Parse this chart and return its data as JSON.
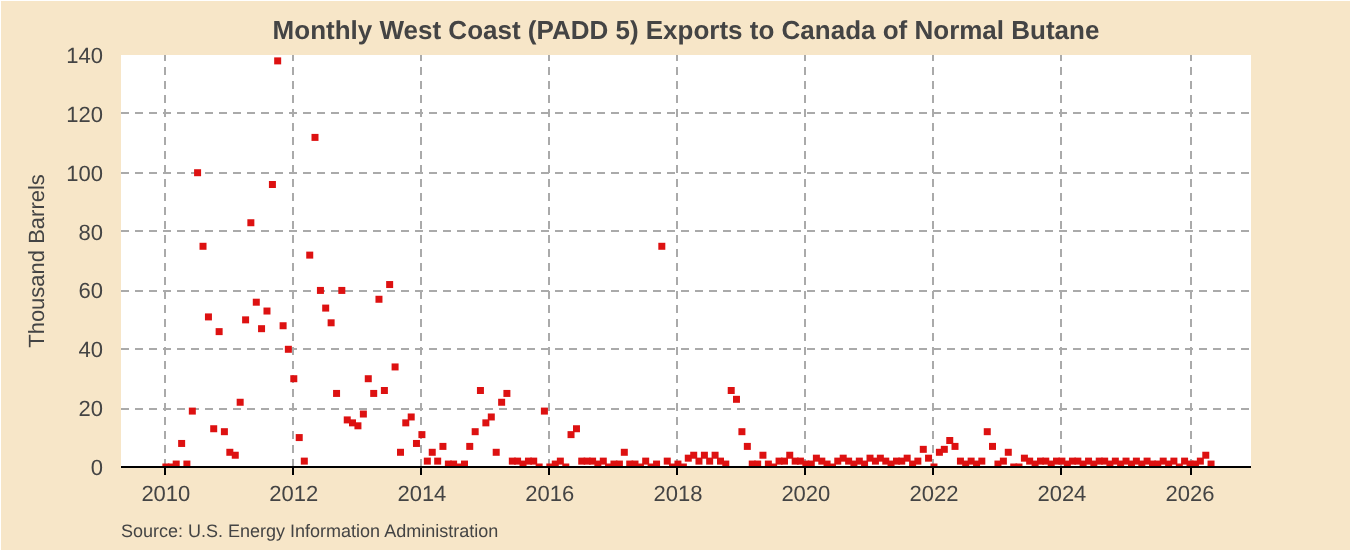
{
  "chart_data": {
    "type": "scatter",
    "title": "Monthly West Coast (PADD 5) Exports to Canada of Normal Butane",
    "ylabel": "Thousand Barrels",
    "annotations": [
      "Source: U.S. Energy Information Administration"
    ],
    "x": [
      "2010-01",
      "2010-02",
      "2010-03",
      "2010-04",
      "2010-05",
      "2010-06",
      "2010-07",
      "2010-08",
      "2010-09",
      "2010-10",
      "2010-11",
      "2010-12",
      "2011-01",
      "2011-02",
      "2011-03",
      "2011-04",
      "2011-05",
      "2011-06",
      "2011-07",
      "2011-08",
      "2011-09",
      "2011-10",
      "2011-11",
      "2011-12",
      "2012-01",
      "2012-02",
      "2012-03",
      "2012-04",
      "2012-05",
      "2012-06",
      "2012-07",
      "2012-08",
      "2012-09",
      "2012-10",
      "2012-11",
      "2012-12",
      "2013-01",
      "2013-02",
      "2013-03",
      "2013-04",
      "2013-05",
      "2013-06",
      "2013-07",
      "2013-08",
      "2013-09",
      "2013-10",
      "2013-11",
      "2013-12",
      "2014-01",
      "2014-02",
      "2014-03",
      "2014-04",
      "2014-05",
      "2014-06",
      "2014-07",
      "2014-08",
      "2014-09",
      "2014-10",
      "2014-11",
      "2014-12",
      "2015-01",
      "2015-02",
      "2015-03",
      "2015-04",
      "2015-05",
      "2015-06",
      "2015-07",
      "2015-08",
      "2015-09",
      "2015-10",
      "2015-11",
      "2015-12",
      "2016-01",
      "2016-02",
      "2016-03",
      "2016-04",
      "2016-05",
      "2016-06",
      "2016-07",
      "2016-08",
      "2016-09",
      "2016-10",
      "2016-11",
      "2016-12",
      "2017-01",
      "2017-02",
      "2017-03",
      "2017-04",
      "2017-05",
      "2017-06",
      "2017-07",
      "2017-08",
      "2017-09",
      "2017-10",
      "2017-11",
      "2017-12",
      "2018-01",
      "2018-02",
      "2018-03",
      "2018-04",
      "2018-05",
      "2018-06",
      "2018-07",
      "2018-08",
      "2018-09",
      "2018-10",
      "2018-11",
      "2018-12",
      "2019-01",
      "2019-02",
      "2019-03",
      "2019-04",
      "2019-05",
      "2019-06",
      "2019-07",
      "2019-08",
      "2019-09",
      "2019-10",
      "2019-11",
      "2019-12",
      "2020-01",
      "2020-02",
      "2020-03",
      "2020-04",
      "2020-05",
      "2020-06",
      "2020-07",
      "2020-08",
      "2020-09",
      "2020-10",
      "2020-11",
      "2020-12",
      "2021-01",
      "2021-02",
      "2021-03",
      "2021-04",
      "2021-05",
      "2021-06",
      "2021-07",
      "2021-08",
      "2021-09",
      "2021-10",
      "2021-11",
      "2021-12",
      "2022-01",
      "2022-02",
      "2022-03",
      "2022-04",
      "2022-05",
      "2022-06",
      "2022-07",
      "2022-08",
      "2022-09",
      "2022-10",
      "2022-11",
      "2022-12",
      "2023-01",
      "2023-02",
      "2023-03",
      "2023-04",
      "2023-05",
      "2023-06",
      "2023-07",
      "2023-08",
      "2023-09",
      "2023-10",
      "2023-11",
      "2023-12",
      "2024-01",
      "2024-02",
      "2024-03",
      "2024-04",
      "2024-05",
      "2024-06",
      "2024-07",
      "2024-08",
      "2024-09",
      "2024-10",
      "2024-11",
      "2024-12",
      "2025-01",
      "2025-02",
      "2025-03",
      "2025-04",
      "2025-05",
      "2025-06",
      "2025-07",
      "2025-08",
      "2025-09",
      "2025-10",
      "2025-11",
      "2025-12",
      "2026-01",
      "2026-02",
      "2026-03",
      "2026-04",
      "2026-05"
    ],
    "series": [
      {
        "color": "#dd1111",
        "values": [
          0,
          0,
          1,
          8,
          1,
          19,
          100,
          75,
          51,
          13,
          46,
          12,
          5,
          4,
          22,
          50,
          83,
          56,
          47,
          53,
          96,
          138,
          48,
          40,
          30,
          10,
          2,
          72,
          112,
          60,
          54,
          49,
          25,
          60,
          16,
          15,
          14,
          18,
          30,
          25,
          57,
          26,
          62,
          34,
          5,
          15,
          17,
          8,
          11,
          2,
          5,
          2,
          7,
          1,
          1,
          0,
          1,
          7,
          12,
          26,
          15,
          17,
          5,
          22,
          25,
          2,
          2,
          1,
          2,
          2,
          0,
          19,
          0,
          1,
          2,
          0,
          11,
          13,
          2,
          2,
          2,
          1,
          2,
          0,
          1,
          1,
          5,
          1,
          1,
          0,
          2,
          0,
          1,
          75,
          2,
          0,
          1,
          0,
          3,
          4,
          2,
          4,
          2,
          4,
          2,
          1,
          26,
          23,
          12,
          7,
          1,
          1,
          4,
          1,
          0,
          2,
          2,
          4,
          2,
          2,
          1,
          1,
          3,
          2,
          1,
          0,
          2,
          3,
          2,
          1,
          2,
          1,
          3,
          2,
          3,
          2,
          1,
          2,
          2,
          3,
          1,
          2,
          6,
          3,
          0,
          5,
          6,
          9,
          7,
          2,
          1,
          2,
          1,
          2,
          12,
          7,
          1,
          2,
          5,
          0,
          0,
          3,
          2,
          1,
          2,
          2,
          1,
          2,
          2,
          1,
          2,
          2,
          1,
          2,
          1,
          2,
          2,
          1,
          2,
          1,
          2,
          1,
          2,
          1,
          2,
          1,
          1,
          2,
          1,
          2,
          0,
          2,
          1,
          1,
          2,
          4,
          1
        ]
      }
    ],
    "xlim": [
      "2009-04-20",
      "2026-12-15"
    ],
    "xticks": [
      "2010",
      "2012",
      "2014",
      "2016",
      "2018",
      "2020",
      "2022",
      "2024",
      "2026"
    ],
    "ylim": [
      0,
      140
    ],
    "yticks": [
      0,
      20,
      40,
      60,
      80,
      100,
      120,
      140
    ],
    "grid": true,
    "marker": "square"
  }
}
